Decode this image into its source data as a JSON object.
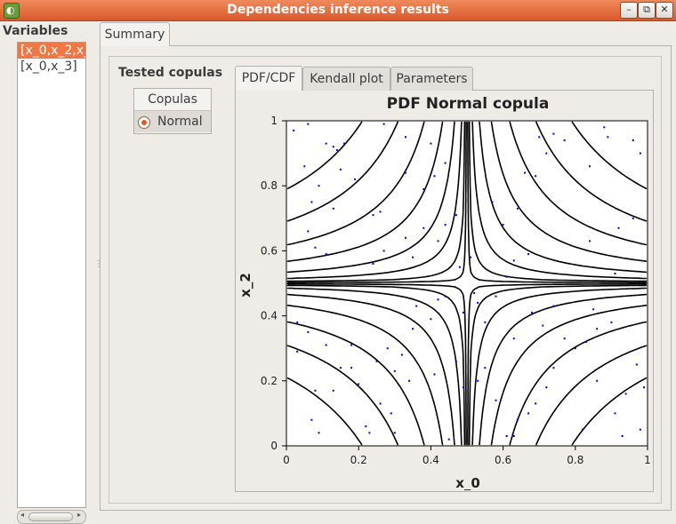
{
  "window": {
    "title": "Dependencies inference results",
    "buttons": {
      "minimize": "–",
      "restore": "⧉",
      "close": "✕"
    }
  },
  "sidebar": {
    "label": "Variables",
    "items": [
      {
        "label": "[x_0,x_2,x_",
        "selected": true
      },
      {
        "label": "[x_0,x_3]",
        "selected": false
      }
    ]
  },
  "tabs": {
    "summary": "Summary"
  },
  "summary": {
    "tested_copulas_label": "Tested copulas",
    "copulas_header": "Copulas",
    "copulas": [
      {
        "label": "Normal",
        "selected": true
      }
    ]
  },
  "plot_tabs": [
    {
      "label": "PDF/CDF",
      "active": true
    },
    {
      "label": "Kendall plot",
      "active": false
    },
    {
      "label": "Parameters",
      "active": false
    }
  ],
  "colors": {
    "accent": "#f07746",
    "points": "#0000cc",
    "contours": "#000000"
  },
  "chart_data": {
    "type": "contour",
    "title": "PDF Normal copula",
    "xlabel": "x_0",
    "ylabel": "x_2",
    "xlim": [
      0,
      1
    ],
    "ylim": [
      0,
      1
    ],
    "x_ticks": [
      "0",
      "0.2",
      "0.4",
      "0.6",
      "0.8",
      "1"
    ],
    "y_ticks": [
      "0",
      "0.2",
      "0.4",
      "0.6",
      "0.8",
      "1"
    ],
    "grid": false,
    "sample_points": [
      [
        0.02,
        0.97
      ],
      [
        0.06,
        0.99
      ],
      [
        0.11,
        0.93
      ],
      [
        0.13,
        0.92
      ],
      [
        0.14,
        0.91
      ],
      [
        0.05,
        0.86
      ],
      [
        0.07,
        0.75
      ],
      [
        0.13,
        0.73
      ],
      [
        0.09,
        0.8
      ],
      [
        0.15,
        0.85
      ],
      [
        0.16,
        0.93
      ],
      [
        0.19,
        0.82
      ],
      [
        0.24,
        0.71
      ],
      [
        0.26,
        0.72
      ],
      [
        0.33,
        0.84
      ],
      [
        0.38,
        0.79
      ],
      [
        0.41,
        0.83
      ],
      [
        0.44,
        0.87
      ],
      [
        0.4,
        0.93
      ],
      [
        0.33,
        0.95
      ],
      [
        0.27,
        0.99
      ],
      [
        0.06,
        0.66
      ],
      [
        0.08,
        0.61
      ],
      [
        0.11,
        0.59
      ],
      [
        0.24,
        0.56
      ],
      [
        0.27,
        0.6
      ],
      [
        0.33,
        0.64
      ],
      [
        0.35,
        0.58
      ],
      [
        0.38,
        0.67
      ],
      [
        0.42,
        0.63
      ],
      [
        0.44,
        0.68
      ],
      [
        0.47,
        0.71
      ],
      [
        0.48,
        0.55
      ],
      [
        0.51,
        0.58
      ],
      [
        0.52,
        0.47
      ],
      [
        0.53,
        0.44
      ],
      [
        0.55,
        0.38
      ],
      [
        0.58,
        0.46
      ],
      [
        0.61,
        0.52
      ],
      [
        0.63,
        0.57
      ],
      [
        0.67,
        0.59
      ],
      [
        0.64,
        0.73
      ],
      [
        0.57,
        0.75
      ],
      [
        0.6,
        0.68
      ],
      [
        0.66,
        0.84
      ],
      [
        0.69,
        0.83
      ],
      [
        0.72,
        0.9
      ],
      [
        0.7,
        0.95
      ],
      [
        0.74,
        0.96
      ],
      [
        0.77,
        0.94
      ],
      [
        0.84,
        0.86
      ],
      [
        0.89,
        0.95
      ],
      [
        0.88,
        0.98
      ],
      [
        0.96,
        0.94
      ],
      [
        0.98,
        0.9
      ],
      [
        0.96,
        0.7
      ],
      [
        0.92,
        0.67
      ],
      [
        0.91,
        0.53
      ],
      [
        0.84,
        0.63
      ],
      [
        0.03,
        0.38
      ],
      [
        0.06,
        0.35
      ],
      [
        0.11,
        0.31
      ],
      [
        0.03,
        0.29
      ],
      [
        0.08,
        0.17
      ],
      [
        0.13,
        0.17
      ],
      [
        0.15,
        0.24
      ],
      [
        0.18,
        0.24
      ],
      [
        0.18,
        0.31
      ],
      [
        0.25,
        0.26
      ],
      [
        0.28,
        0.3
      ],
      [
        0.32,
        0.28
      ],
      [
        0.3,
        0.23
      ],
      [
        0.35,
        0.36
      ],
      [
        0.36,
        0.43
      ],
      [
        0.4,
        0.39
      ],
      [
        0.42,
        0.45
      ],
      [
        0.44,
        0.46
      ],
      [
        0.49,
        0.41
      ],
      [
        0.34,
        0.2
      ],
      [
        0.2,
        0.19
      ],
      [
        0.26,
        0.13
      ],
      [
        0.29,
        0.1
      ],
      [
        0.22,
        0.06
      ],
      [
        0.23,
        0.04
      ],
      [
        0.3,
        0.04
      ],
      [
        0.09,
        0.04
      ],
      [
        0.07,
        0.08
      ],
      [
        0.41,
        0.22
      ],
      [
        0.47,
        0.26
      ],
      [
        0.49,
        0.18
      ],
      [
        0.45,
        0.02
      ],
      [
        0.53,
        0.2
      ],
      [
        0.55,
        0.24
      ],
      [
        0.58,
        0.14
      ],
      [
        0.61,
        0.03
      ],
      [
        0.63,
        0.03
      ],
      [
        0.64,
        0.08
      ],
      [
        0.67,
        0.1
      ],
      [
        0.69,
        0.13
      ],
      [
        0.72,
        0.18
      ],
      [
        0.74,
        0.24
      ],
      [
        0.77,
        0.33
      ],
      [
        0.8,
        0.3
      ],
      [
        0.83,
        0.32
      ],
      [
        0.86,
        0.36
      ],
      [
        0.9,
        0.38
      ],
      [
        0.94,
        0.16
      ],
      [
        0.91,
        0.1
      ],
      [
        0.93,
        0.03
      ],
      [
        0.98,
        0.05
      ],
      [
        0.99,
        0.18
      ],
      [
        0.97,
        0.25
      ],
      [
        0.85,
        0.42
      ],
      [
        0.74,
        0.43
      ],
      [
        0.71,
        0.37
      ],
      [
        0.68,
        0.41
      ],
      [
        0.63,
        0.33
      ],
      [
        0.86,
        0.2
      ],
      [
        0.82,
        0.05
      ]
    ]
  }
}
